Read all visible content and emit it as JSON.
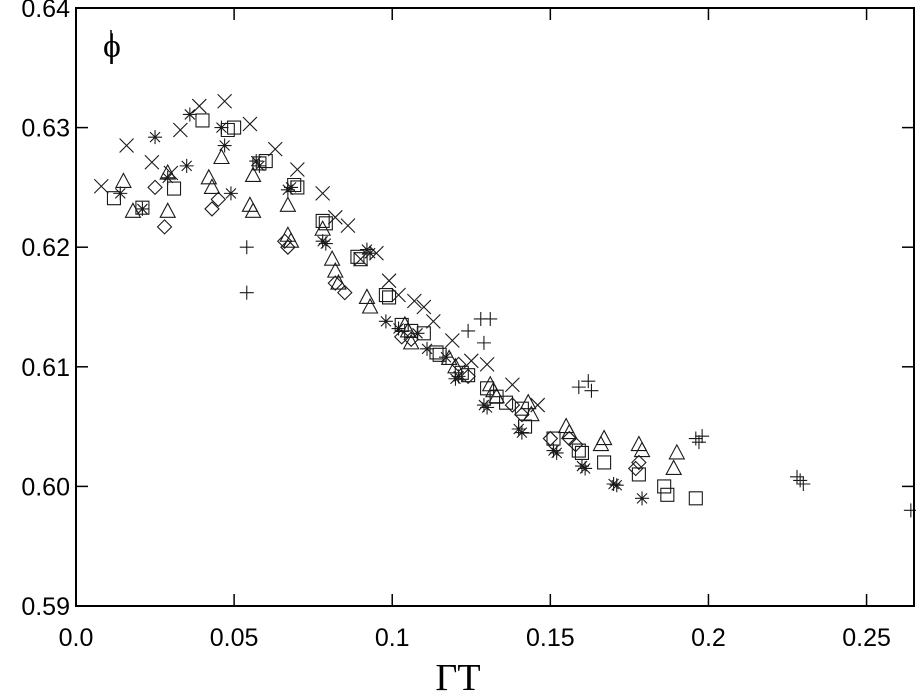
{
  "chart_data": {
    "type": "scatter",
    "title": "",
    "xlabel": "ΓT",
    "ylabel": "",
    "corner_label": "ϕ",
    "xlim": [
      0.0,
      0.265
    ],
    "ylim": [
      0.59,
      0.64
    ],
    "xticks": [
      0.0,
      0.05,
      0.1,
      0.15,
      0.2,
      0.25
    ],
    "xtick_labels": [
      "0.0",
      "0.05",
      "0.1",
      "0.15",
      "0.2",
      "0.25"
    ],
    "yticks": [
      0.59,
      0.6,
      0.61,
      0.62,
      0.63,
      0.64
    ],
    "ytick_labels": [
      "0.59",
      "0.60",
      "0.61",
      "0.62",
      "0.63",
      "0.64"
    ],
    "grid": false,
    "legend": "none",
    "series": [
      {
        "marker": "cross-x",
        "points": [
          [
            0.008,
            0.6251
          ],
          [
            0.016,
            0.6285
          ],
          [
            0.024,
            0.6271
          ],
          [
            0.03,
            0.6262
          ],
          [
            0.033,
            0.6298
          ],
          [
            0.039,
            0.6318
          ],
          [
            0.047,
            0.6322
          ],
          [
            0.055,
            0.6303
          ],
          [
            0.063,
            0.6282
          ],
          [
            0.07,
            0.6265
          ],
          [
            0.078,
            0.6245
          ],
          [
            0.082,
            0.6225
          ],
          [
            0.086,
            0.6218
          ],
          [
            0.09,
            0.619
          ],
          [
            0.095,
            0.6195
          ],
          [
            0.099,
            0.6172
          ],
          [
            0.102,
            0.616
          ],
          [
            0.107,
            0.6155
          ],
          [
            0.11,
            0.615
          ],
          [
            0.113,
            0.6138
          ],
          [
            0.119,
            0.6122
          ],
          [
            0.125,
            0.6105
          ],
          [
            0.13,
            0.6102
          ],
          [
            0.138,
            0.6085
          ],
          [
            0.146,
            0.6068
          ]
        ]
      },
      {
        "marker": "asterisk",
        "points": [
          [
            0.014,
            0.6245
          ],
          [
            0.021,
            0.6232
          ],
          [
            0.025,
            0.6292
          ],
          [
            0.029,
            0.6258
          ],
          [
            0.035,
            0.6268
          ],
          [
            0.036,
            0.6311
          ],
          [
            0.046,
            0.63
          ],
          [
            0.047,
            0.6285
          ],
          [
            0.049,
            0.6245
          ],
          [
            0.057,
            0.6272
          ],
          [
            0.058,
            0.6268
          ],
          [
            0.067,
            0.6248
          ],
          [
            0.068,
            0.625
          ],
          [
            0.078,
            0.6205
          ],
          [
            0.079,
            0.6203
          ],
          [
            0.092,
            0.6198
          ],
          [
            0.093,
            0.6195
          ],
          [
            0.098,
            0.6138
          ],
          [
            0.102,
            0.6132
          ],
          [
            0.108,
            0.6128
          ],
          [
            0.111,
            0.6115
          ],
          [
            0.117,
            0.6108
          ],
          [
            0.12,
            0.609
          ],
          [
            0.121,
            0.6092
          ],
          [
            0.129,
            0.6068
          ],
          [
            0.13,
            0.6066
          ],
          [
            0.14,
            0.6048
          ],
          [
            0.141,
            0.6045
          ],
          [
            0.151,
            0.603
          ],
          [
            0.152,
            0.6028
          ],
          [
            0.16,
            0.6017
          ],
          [
            0.161,
            0.6015
          ],
          [
            0.17,
            0.6002
          ],
          [
            0.171,
            0.6001
          ],
          [
            0.179,
            0.599
          ]
        ]
      },
      {
        "marker": "square",
        "points": [
          [
            0.012,
            0.6241
          ],
          [
            0.021,
            0.6233
          ],
          [
            0.031,
            0.6249
          ],
          [
            0.04,
            0.6306
          ],
          [
            0.048,
            0.6298
          ],
          [
            0.05,
            0.63
          ],
          [
            0.058,
            0.627
          ],
          [
            0.06,
            0.6272
          ],
          [
            0.069,
            0.6252
          ],
          [
            0.07,
            0.625
          ],
          [
            0.078,
            0.6222
          ],
          [
            0.079,
            0.622
          ],
          [
            0.089,
            0.6192
          ],
          [
            0.09,
            0.619
          ],
          [
            0.098,
            0.616
          ],
          [
            0.099,
            0.6158
          ],
          [
            0.103,
            0.6135
          ],
          [
            0.106,
            0.613
          ],
          [
            0.11,
            0.6128
          ],
          [
            0.114,
            0.6112
          ],
          [
            0.115,
            0.611
          ],
          [
            0.122,
            0.6095
          ],
          [
            0.124,
            0.6093
          ],
          [
            0.13,
            0.6082
          ],
          [
            0.133,
            0.6075
          ],
          [
            0.136,
            0.607
          ],
          [
            0.141,
            0.6065
          ],
          [
            0.142,
            0.605
          ],
          [
            0.151,
            0.604
          ],
          [
            0.159,
            0.603
          ],
          [
            0.16,
            0.6028
          ],
          [
            0.167,
            0.602
          ],
          [
            0.178,
            0.601
          ],
          [
            0.186,
            0.6
          ],
          [
            0.187,
            0.5993
          ],
          [
            0.196,
            0.599
          ]
        ]
      },
      {
        "marker": "triangle",
        "points": [
          [
            0.015,
            0.6255
          ],
          [
            0.018,
            0.623
          ],
          [
            0.029,
            0.6262
          ],
          [
            0.029,
            0.623
          ],
          [
            0.042,
            0.6258
          ],
          [
            0.043,
            0.625
          ],
          [
            0.046,
            0.6275
          ],
          [
            0.055,
            0.6235
          ],
          [
            0.056,
            0.623
          ],
          [
            0.056,
            0.626
          ],
          [
            0.067,
            0.6235
          ],
          [
            0.067,
            0.621
          ],
          [
            0.068,
            0.6205
          ],
          [
            0.078,
            0.6215
          ],
          [
            0.081,
            0.619
          ],
          [
            0.082,
            0.618
          ],
          [
            0.083,
            0.617
          ],
          [
            0.092,
            0.6158
          ],
          [
            0.093,
            0.615
          ],
          [
            0.104,
            0.6135
          ],
          [
            0.105,
            0.613
          ],
          [
            0.106,
            0.612
          ],
          [
            0.118,
            0.6107
          ],
          [
            0.12,
            0.61
          ],
          [
            0.131,
            0.6085
          ],
          [
            0.132,
            0.608
          ],
          [
            0.133,
            0.6075
          ],
          [
            0.143,
            0.607
          ],
          [
            0.144,
            0.606
          ],
          [
            0.155,
            0.605
          ],
          [
            0.156,
            0.6045
          ],
          [
            0.166,
            0.6035
          ],
          [
            0.167,
            0.604
          ],
          [
            0.178,
            0.6035
          ],
          [
            0.179,
            0.603
          ],
          [
            0.189,
            0.6015
          ],
          [
            0.19,
            0.6028
          ]
        ]
      },
      {
        "marker": "diamond",
        "points": [
          [
            0.025,
            0.625
          ],
          [
            0.028,
            0.6217
          ],
          [
            0.043,
            0.6232
          ],
          [
            0.045,
            0.624
          ],
          [
            0.066,
            0.6205
          ],
          [
            0.067,
            0.62
          ],
          [
            0.082,
            0.617
          ],
          [
            0.085,
            0.6162
          ],
          [
            0.103,
            0.6125
          ],
          [
            0.106,
            0.6123
          ],
          [
            0.121,
            0.6102
          ],
          [
            0.124,
            0.6092
          ],
          [
            0.138,
            0.6068
          ],
          [
            0.141,
            0.606
          ],
          [
            0.15,
            0.604
          ],
          [
            0.156,
            0.604
          ],
          [
            0.158,
            0.6035
          ],
          [
            0.177,
            0.6015
          ],
          [
            0.178,
            0.602
          ]
        ]
      },
      {
        "marker": "plus",
        "points": [
          [
            0.054,
            0.62
          ],
          [
            0.054,
            0.6162
          ],
          [
            0.124,
            0.613
          ],
          [
            0.128,
            0.614
          ],
          [
            0.129,
            0.612
          ],
          [
            0.131,
            0.614
          ],
          [
            0.159,
            0.6083
          ],
          [
            0.162,
            0.6088
          ],
          [
            0.163,
            0.608
          ],
          [
            0.196,
            0.604
          ],
          [
            0.197,
            0.6037
          ],
          [
            0.198,
            0.6042
          ],
          [
            0.228,
            0.6008
          ],
          [
            0.229,
            0.6005
          ],
          [
            0.23,
            0.6002
          ],
          [
            0.264,
            0.598
          ]
        ]
      }
    ]
  }
}
